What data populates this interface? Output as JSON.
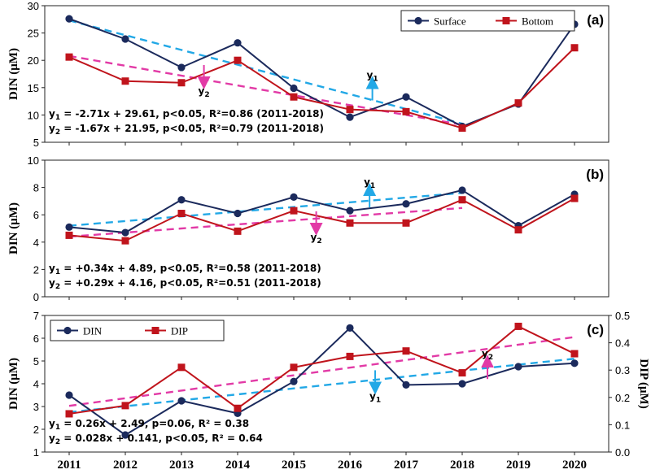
{
  "chart_data": [
    {
      "type": "line",
      "panel_label": "(a)",
      "ylabel": "DIN (μM)",
      "ylim": [
        5,
        30
      ],
      "yticks": [
        "5",
        "10",
        "15",
        "20",
        "25",
        "30"
      ],
      "categories": [
        "2011",
        "2012",
        "2013",
        "2014",
        "2015",
        "2016",
        "2017",
        "2018",
        "2019",
        "2020"
      ],
      "series": [
        {
          "name": "Surface",
          "color": "#1b2a5c",
          "marker": "circle",
          "values": [
            27.6,
            23.9,
            18.7,
            23.2,
            14.9,
            9.6,
            13.3,
            7.9,
            12.0,
            26.6
          ]
        },
        {
          "name": "Bottom",
          "color": "#c0141c",
          "marker": "square",
          "values": [
            20.6,
            16.2,
            15.9,
            20.0,
            13.3,
            11.0,
            10.6,
            7.6,
            12.2,
            22.3
          ]
        }
      ],
      "trendlines": [
        {
          "name": "y1",
          "color": "#22a8e6",
          "from": [
            0,
            27.3
          ],
          "to": [
            7,
            8.4
          ]
        },
        {
          "name": "y2",
          "color": "#e23aa6",
          "from": [
            0,
            20.8
          ],
          "to": [
            7,
            8.2
          ]
        }
      ],
      "annotations": [
        {
          "label": "y1",
          "direction": "up",
          "color": "#22a8e6",
          "at_index": 5.4,
          "at_value": 14.3
        },
        {
          "label": "y2",
          "direction": "down",
          "color": "#e23aa6",
          "at_index": 2.4,
          "at_value": 17.5
        }
      ],
      "equations": [
        "y1 = -2.71x + 29.61, p<0.05, R²=0.86 (2011-2018)",
        "y2 = -1.67x + 21.95, p<0.05, R²=0.79 (2011-2018)"
      ],
      "legend_position": "top-right"
    },
    {
      "type": "line",
      "panel_label": "(b)",
      "ylabel": "DIN (μM)",
      "ylim": [
        0,
        10
      ],
      "yticks": [
        "0",
        "2",
        "4",
        "6",
        "8",
        "10"
      ],
      "categories": [
        "2011",
        "2012",
        "2013",
        "2014",
        "2015",
        "2016",
        "2017",
        "2018",
        "2019",
        "2020"
      ],
      "series": [
        {
          "name": "Surface",
          "color": "#1b2a5c",
          "marker": "circle",
          "values": [
            5.1,
            4.7,
            7.1,
            6.1,
            7.3,
            6.3,
            6.8,
            7.8,
            5.2,
            7.5
          ]
        },
        {
          "name": "Bottom",
          "color": "#c0141c",
          "marker": "square",
          "values": [
            4.5,
            4.1,
            6.1,
            4.8,
            6.3,
            5.4,
            5.4,
            7.1,
            4.9,
            7.2
          ]
        }
      ],
      "trendlines": [
        {
          "name": "y1",
          "color": "#22a8e6",
          "from": [
            0,
            5.2
          ],
          "to": [
            7,
            7.6
          ]
        },
        {
          "name": "y2",
          "color": "#e23aa6",
          "from": [
            0,
            4.4
          ],
          "to": [
            7,
            6.5
          ]
        }
      ],
      "annotations": [
        {
          "label": "y1",
          "direction": "up",
          "color": "#22a8e6",
          "at_index": 5.35,
          "at_value": 7.2
        },
        {
          "label": "y2",
          "direction": "down",
          "color": "#e23aa6",
          "at_index": 4.4,
          "at_value": 5.6
        }
      ],
      "equations": [
        "y1 = +0.34x + 4.89, p<0.05, R²=0.58 (2011-2018)",
        "y2 = +0.29x + 4.16, p<0.05, R²=0.51 (2011-2018)"
      ]
    },
    {
      "type": "line",
      "panel_label": "(c)",
      "ylabel": "DIN (μM)",
      "y2label": "DIP (μM)",
      "ylim": [
        1,
        7
      ],
      "y2lim": [
        0,
        0.5
      ],
      "yticks": [
        "1",
        "2",
        "3",
        "4",
        "5",
        "6",
        "7"
      ],
      "y2ticks": [
        "0.0",
        "0.1",
        "0.2",
        "0.3",
        "0.4",
        "0.5"
      ],
      "categories": [
        "2011",
        "2012",
        "2013",
        "2014",
        "2015",
        "2016",
        "2017",
        "2018",
        "2019",
        "2020"
      ],
      "series": [
        {
          "name": "DIN",
          "axis": "left",
          "color": "#1b2a5c",
          "marker": "circle",
          "values": [
            3.5,
            1.75,
            3.25,
            2.7,
            4.1,
            6.45,
            3.95,
            4.0,
            4.75,
            4.9
          ]
        },
        {
          "name": "DIP",
          "axis": "right",
          "color": "#c0141c",
          "marker": "square",
          "values": [
            0.14,
            0.17,
            0.31,
            0.16,
            0.31,
            0.35,
            0.37,
            0.29,
            0.46,
            0.36
          ]
        }
      ],
      "trendlines": [
        {
          "name": "y1",
          "axis": "left",
          "color": "#22a8e6",
          "from": [
            0,
            2.75
          ],
          "to": [
            9,
            5.1
          ]
        },
        {
          "name": "y2",
          "axis": "right",
          "color": "#e23aa6",
          "from": [
            0,
            0.169
          ],
          "to": [
            9,
            0.421
          ]
        }
      ],
      "annotations": [
        {
          "label": "y1",
          "direction": "down",
          "color": "#22a8e6",
          "at_index": 5.45,
          "at_value": 4.2
        },
        {
          "label": "y2",
          "direction": "up",
          "color": "#e23aa6",
          "at_index": 7.45,
          "at_value": 4.6
        }
      ],
      "equations": [
        "y1 = 0.26x + 2.49, p=0.06, R² = 0.38",
        "y2 = 0.028x + 0.141, p<0.05, R² = 0.64"
      ],
      "legend_position": "top-left"
    }
  ]
}
